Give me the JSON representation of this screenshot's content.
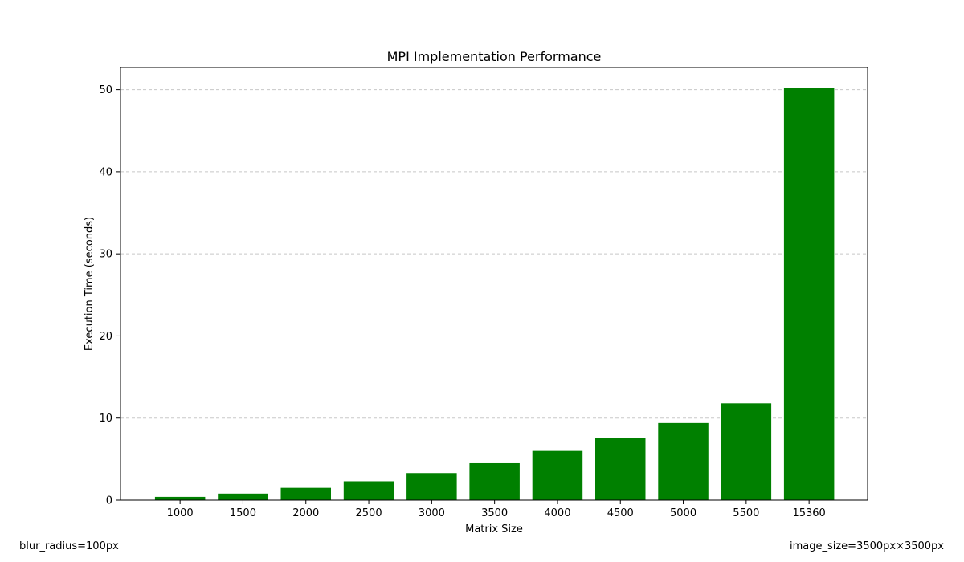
{
  "chart_data": {
    "type": "bar",
    "title": "MPI Implementation Performance",
    "xlabel": "Matrix Size",
    "ylabel": "Execution Time (seconds)",
    "categories": [
      "1000",
      "1500",
      "2000",
      "2500",
      "3000",
      "3500",
      "4000",
      "4500",
      "5000",
      "5500",
      "15360"
    ],
    "values": [
      0.4,
      0.8,
      1.5,
      2.3,
      3.3,
      4.5,
      6.0,
      7.6,
      9.4,
      11.8,
      50.2
    ],
    "ylim": [
      0,
      52.7
    ],
    "yticks": [
      0,
      10,
      20,
      30,
      40,
      50
    ],
    "grid": "y-dashed",
    "bar_color": "#008000",
    "legend": "none"
  },
  "footer": {
    "left_note": "blur_radius=100px",
    "right_note": "image_size=3500px×3500px"
  }
}
